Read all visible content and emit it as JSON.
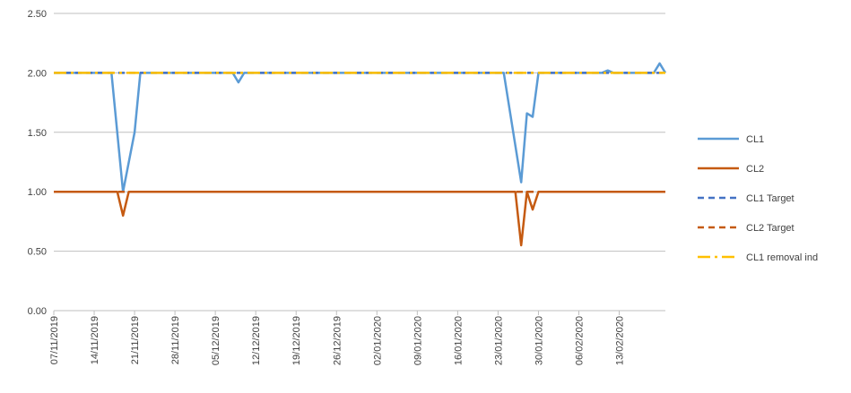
{
  "chart_data": {
    "type": "line",
    "title": "",
    "xlabel": "",
    "ylabel": "",
    "ylim": [
      0,
      2.5
    ],
    "yticks": [
      "0.00",
      "0.50",
      "1.00",
      "1.50",
      "2.00",
      "2.50"
    ],
    "xlim": [
      "07/11/2019",
      "21/02/2020"
    ],
    "xticks": [
      "07/11/2019",
      "14/11/2019",
      "21/11/2019",
      "28/11/2019",
      "05/12/2019",
      "12/12/2019",
      "19/12/2019",
      "26/12/2019",
      "02/01/2020",
      "09/01/2020",
      "16/01/2020",
      "23/01/2020",
      "30/01/2020",
      "06/02/2020",
      "13/02/2020"
    ],
    "grid": "horizontal",
    "legend_position": "right",
    "series": [
      {
        "name": "CL1",
        "color": "#5B9BD5",
        "style": "solid",
        "points": [
          [
            "07/11/2019",
            2.0
          ],
          [
            "17/11/2019",
            2.0
          ],
          [
            "19/11/2019",
            1.0
          ],
          [
            "21/11/2019",
            1.5
          ],
          [
            "22/11/2019",
            2.0
          ],
          [
            "08/12/2019",
            2.0
          ],
          [
            "09/12/2019",
            1.92
          ],
          [
            "10/12/2019",
            2.0
          ],
          [
            "24/01/2020",
            2.0
          ],
          [
            "27/01/2020",
            1.08
          ],
          [
            "28/01/2020",
            1.66
          ],
          [
            "29/01/2020",
            1.63
          ],
          [
            "30/01/2020",
            2.0
          ],
          [
            "10/02/2020",
            2.0
          ],
          [
            "11/02/2020",
            2.02
          ],
          [
            "12/02/2020",
            2.0
          ],
          [
            "19/02/2020",
            2.0
          ],
          [
            "20/02/2020",
            2.08
          ],
          [
            "21/02/2020",
            2.0
          ]
        ]
      },
      {
        "name": "CL2",
        "color": "#C55A11",
        "style": "solid",
        "points": [
          [
            "07/11/2019",
            1.0
          ],
          [
            "18/11/2019",
            1.0
          ],
          [
            "19/11/2019",
            0.8
          ],
          [
            "20/11/2019",
            1.0
          ],
          [
            "26/01/2020",
            1.0
          ],
          [
            "27/01/2020",
            0.55
          ],
          [
            "28/01/2020",
            1.0
          ],
          [
            "29/01/2020",
            0.85
          ],
          [
            "30/01/2020",
            1.0
          ],
          [
            "21/02/2020",
            1.0
          ]
        ]
      },
      {
        "name": "CL1 Target",
        "color": "#4472C4",
        "style": "dashed",
        "points": [
          [
            "07/11/2019",
            2.0
          ],
          [
            "21/02/2020",
            2.0
          ]
        ]
      },
      {
        "name": "CL2 Target",
        "color": "#C55A11",
        "style": "dashed",
        "points": [
          [
            "07/11/2019",
            1.0
          ],
          [
            "21/02/2020",
            1.0
          ]
        ]
      },
      {
        "name": "CL1 removal ind",
        "color": "#FFC000",
        "style": "dashdot",
        "points": [
          [
            "07/11/2019",
            2.0
          ],
          [
            "21/02/2020",
            2.0
          ]
        ]
      }
    ]
  }
}
